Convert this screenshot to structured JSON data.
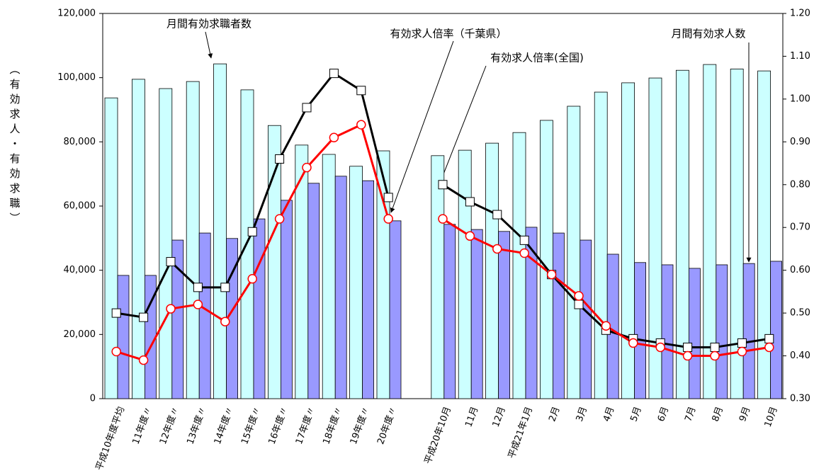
{
  "chart_data": {
    "type": "bar",
    "categories": [
      "平成10年度平均",
      "11年度〃",
      "12年度〃",
      "13年度〃",
      "14年度〃",
      "15年度〃",
      "16年度〃",
      "17年度〃",
      "18年度〃",
      "19年度〃",
      "20年度〃",
      null,
      "平成20年10月",
      "11月",
      "12月",
      "平成21年1月",
      "2月",
      "3月",
      "4月",
      "5月",
      "6月",
      "7月",
      "8月",
      "9月",
      "10月"
    ],
    "series": [
      {
        "name": "月間有効求職者数",
        "type": "bar",
        "color": "#ccffff",
        "values": [
          93700,
          99500,
          96600,
          98800,
          104300,
          96200,
          85100,
          79000,
          76100,
          72400,
          77200,
          null,
          75700,
          77400,
          79600,
          82900,
          86700,
          91100,
          95500,
          98400,
          99900,
          102300,
          104100,
          102700,
          102100
        ]
      },
      {
        "name": "月間有効求人数",
        "type": "bar",
        "color": "#9999ff",
        "values": [
          38400,
          38400,
          49400,
          51600,
          49900,
          56000,
          61800,
          67100,
          69300,
          67900,
          55400,
          null,
          54300,
          52700,
          52100,
          53400,
          51600,
          49400,
          45000,
          42400,
          41700,
          40600,
          41700,
          42100,
          42800
        ]
      },
      {
        "name": "有効求人倍率（千葉県）",
        "type": "line",
        "axis": "y2",
        "color": "#000000",
        "marker": "square",
        "values": [
          0.5,
          0.49,
          0.62,
          0.56,
          0.56,
          0.69,
          0.86,
          0.98,
          1.06,
          1.02,
          0.77,
          null,
          0.8,
          0.76,
          0.73,
          0.67,
          0.59,
          0.52,
          0.46,
          0.44,
          0.43,
          0.42,
          0.42,
          0.43,
          0.44
        ]
      },
      {
        "name": "有効求人倍率(全国)",
        "type": "line",
        "axis": "y2",
        "color": "#ff0000",
        "marker": "circle",
        "values": [
          0.41,
          0.39,
          0.51,
          0.52,
          0.48,
          0.58,
          0.72,
          0.84,
          0.91,
          0.94,
          0.72,
          null,
          0.72,
          0.68,
          0.65,
          0.64,
          0.59,
          0.54,
          0.47,
          0.43,
          0.42,
          0.4,
          0.4,
          0.41,
          0.42
        ]
      }
    ],
    "y_label": "（有効求人・有効求職）",
    "ylim": [
      0,
      120000
    ],
    "yticks": [
      0,
      {
        "value": 20000,
        "label": "20,000"
      },
      {
        "value": 40000,
        "label": "40,000"
      },
      {
        "value": 60000,
        "label": "60,000"
      },
      {
        "value": 80000,
        "label": "80,000"
      },
      {
        "value": 100000,
        "label": "100,000"
      },
      {
        "value": 120000,
        "label": "120,000"
      }
    ],
    "y2lim": [
      0.3,
      1.2
    ],
    "y2ticks": [
      {
        "value": 0.3,
        "label": "0.30"
      },
      {
        "value": 0.4,
        "label": "0.40"
      },
      {
        "value": 0.5,
        "label": "0.50"
      },
      {
        "value": 0.6,
        "label": "0.60"
      },
      {
        "value": 0.7,
        "label": "0.70"
      },
      {
        "value": 0.8,
        "label": "0.80"
      },
      {
        "value": 0.9,
        "label": "0.90"
      },
      {
        "value": 1.0,
        "label": "1.00"
      },
      {
        "value": 1.1,
        "label": "1.10"
      },
      {
        "value": 1.2,
        "label": "1.20"
      }
    ],
    "grid": false
  }
}
